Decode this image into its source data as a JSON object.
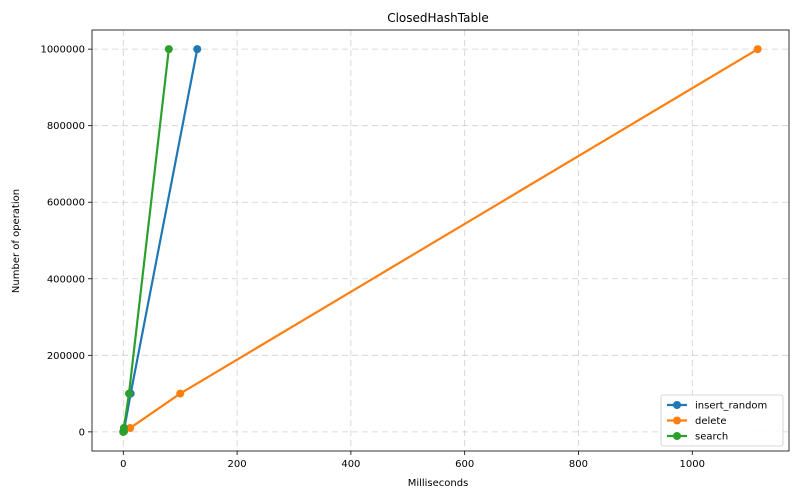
{
  "chart_data": {
    "type": "line",
    "title": "ClosedHashTable",
    "xlabel": "Milliseconds",
    "ylabel": "Number of operation",
    "xlim": [
      -55,
      1170
    ],
    "ylim": [
      -50000,
      1050000
    ],
    "xticks": [
      0,
      200,
      400,
      600,
      800,
      1000
    ],
    "yticks": [
      0,
      200000,
      400000,
      600000,
      800000,
      1000000
    ],
    "grid": true,
    "legend": "bottom-right",
    "series": [
      {
        "name": "insert_random",
        "color": "#1f77b4",
        "points": [
          [
            0,
            100
          ],
          [
            1,
            1000
          ],
          [
            2,
            10000
          ],
          [
            13,
            100000
          ],
          [
            130,
            1000000
          ]
        ]
      },
      {
        "name": "delete",
        "color": "#ff7f0e",
        "points": [
          [
            0,
            100
          ],
          [
            1,
            1000
          ],
          [
            12,
            10000
          ],
          [
            100,
            100000
          ],
          [
            1115,
            1000000
          ]
        ]
      },
      {
        "name": "search",
        "color": "#2ca02c",
        "points": [
          [
            0,
            100
          ],
          [
            1,
            1000
          ],
          [
            1,
            10000
          ],
          [
            10,
            100000
          ],
          [
            80,
            1000000
          ]
        ]
      }
    ]
  }
}
